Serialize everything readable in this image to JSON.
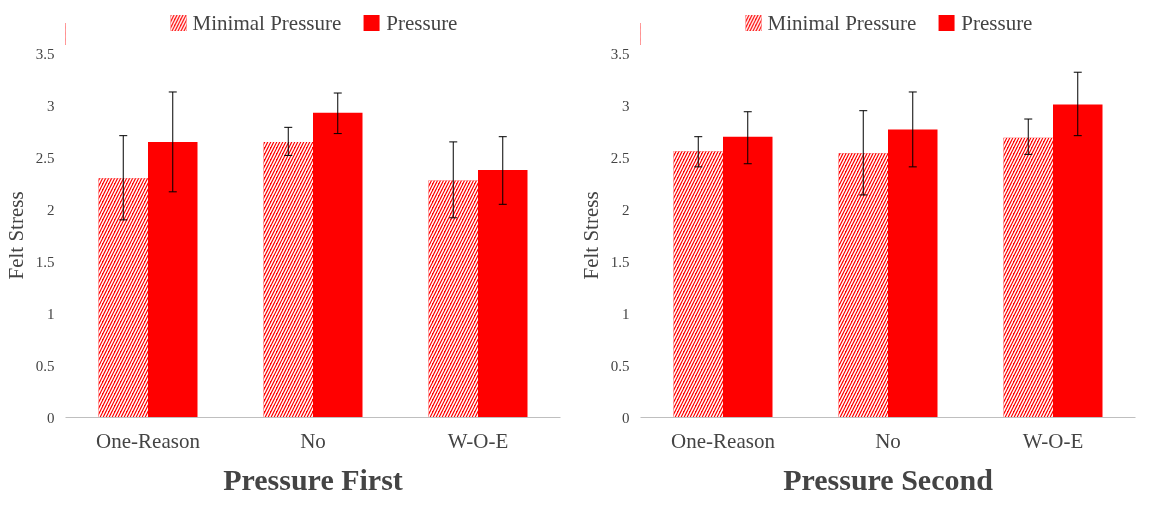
{
  "chart_data": [
    {
      "type": "bar",
      "title": "Pressure First",
      "ylabel": "Felt Stress",
      "categories": [
        "One-Reason",
        "No",
        "W-O-E"
      ],
      "ylim": [
        0,
        3.5
      ],
      "yticks": [
        0,
        0.5,
        1,
        1.5,
        2,
        2.5,
        3,
        3.5
      ],
      "grid": false,
      "legend": "top",
      "series": [
        {
          "name": "Minimal Pressure",
          "color": "#ff0000",
          "values": [
            2.3,
            2.65,
            2.28
          ],
          "errors": [
            [
              1.9,
              2.71
            ],
            [
              2.52,
              2.79
            ],
            [
              1.92,
              2.65
            ]
          ]
        },
        {
          "name": "Pressure",
          "color": "#ff0000",
          "values": [
            2.65,
            2.93,
            2.38
          ],
          "errors": [
            [
              2.17,
              3.13
            ],
            [
              2.73,
              3.12
            ],
            [
              2.05,
              2.7
            ]
          ]
        }
      ]
    },
    {
      "type": "bar",
      "title": "Pressure Second",
      "ylabel": "Felt Stress",
      "categories": [
        "One-Reason",
        "No",
        "W-O-E"
      ],
      "ylim": [
        0,
        3.5
      ],
      "yticks": [
        0,
        0.5,
        1,
        1.5,
        2,
        2.5,
        3,
        3.5
      ],
      "grid": false,
      "legend": "top",
      "series": [
        {
          "name": "Minimal Pressure",
          "color": "#ff0000",
          "values": [
            2.56,
            2.54,
            2.69
          ],
          "errors": [
            [
              2.41,
              2.7
            ],
            [
              2.14,
              2.95
            ],
            [
              2.53,
              2.87
            ]
          ]
        },
        {
          "name": "Pressure",
          "color": "#ff0000",
          "values": [
            2.7,
            2.77,
            3.01
          ],
          "errors": [
            [
              2.44,
              2.94
            ],
            [
              2.41,
              3.13
            ],
            [
              2.71,
              3.32
            ]
          ]
        }
      ]
    }
  ]
}
